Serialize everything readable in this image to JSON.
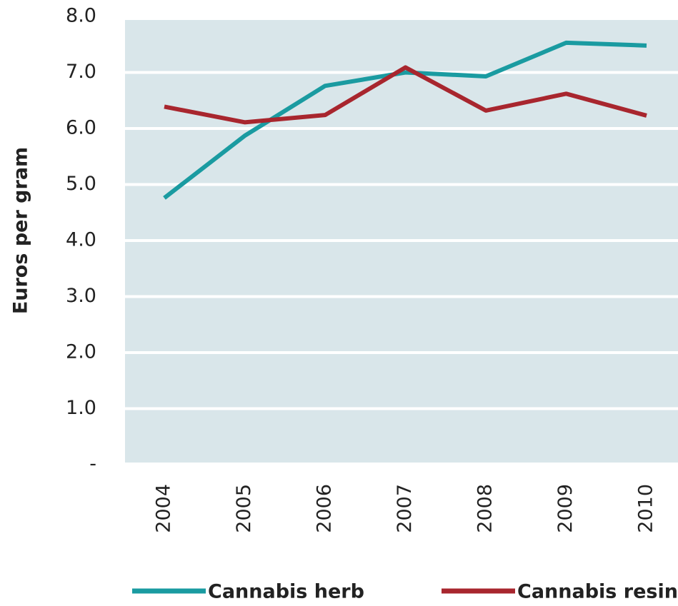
{
  "chart_data": {
    "type": "line",
    "y_label": "Euros per gram",
    "categories": [
      "2004",
      "2005",
      "2006",
      "2007",
      "2008",
      "2009",
      "2010"
    ],
    "series": [
      {
        "name": "Cannabis herb",
        "color": "#1a9ba1",
        "values": [
          4.76,
          5.87,
          6.76,
          7.0,
          6.93,
          7.53,
          7.48
        ]
      },
      {
        "name": "Cannabis resin",
        "color": "#a8262e",
        "values": [
          6.39,
          6.11,
          6.24,
          7.09,
          6.32,
          6.62,
          6.23
        ]
      }
    ],
    "ylim": [
      0,
      8
    ],
    "yticks": [
      {
        "value": 0,
        "label": "-"
      },
      {
        "value": 1,
        "label": "1.0"
      },
      {
        "value": 2,
        "label": "2.0"
      },
      {
        "value": 3,
        "label": "3.0"
      },
      {
        "value": 4,
        "label": "4.0"
      },
      {
        "value": 5,
        "label": "5.0"
      },
      {
        "value": 6,
        "label": "6.0"
      },
      {
        "value": 7,
        "label": "7.0"
      },
      {
        "value": 8,
        "label": "8.0"
      }
    ],
    "grid": true,
    "background": "#d9e6ea"
  }
}
